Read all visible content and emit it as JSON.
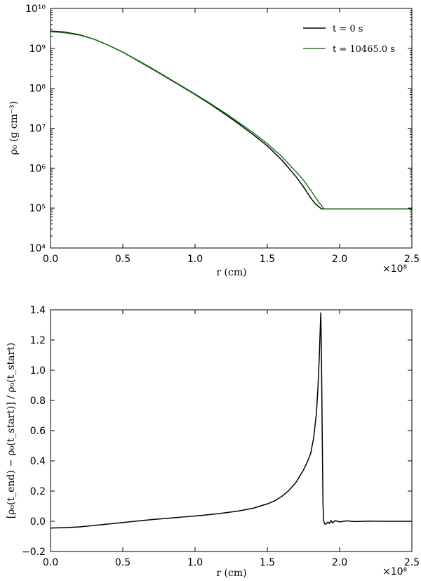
{
  "chart_data": [
    {
      "type": "line",
      "xlabel": "r  (cm)",
      "ylabel": "ρ₀  (g cm⁻³)",
      "x_multiplier": "×10⁸",
      "xlim": [
        0.0,
        2.5
      ],
      "ylim": [
        10000,
        10000000000
      ],
      "y_scale": "log",
      "grid": false,
      "legend_position": "top-right",
      "x_ticks": [
        "0.0",
        "0.5",
        "1.0",
        "1.5",
        "2.0",
        "2.5"
      ],
      "y_ticks": [
        "10⁴",
        "10⁵",
        "10⁶",
        "10⁷",
        "10⁸",
        "10⁹",
        "10¹⁰"
      ],
      "series": [
        {
          "name": "t = 0 s",
          "color": "#000000",
          "x": [
            0.0,
            0.05,
            0.1,
            0.2,
            0.3,
            0.4,
            0.5,
            0.6,
            0.7,
            0.8,
            0.9,
            1.0,
            1.1,
            1.2,
            1.3,
            1.4,
            1.5,
            1.6,
            1.7,
            1.75,
            1.8,
            1.83,
            1.86,
            1.875,
            1.9,
            2.0,
            2.5
          ],
          "y": [
            2700000000.0,
            2650000000.0,
            2550000000.0,
            2200000000.0,
            1700000000.0,
            1200000000.0,
            800000000.0,
            500000000.0,
            310000000.0,
            190000000.0,
            115000000.0,
            70000000.0,
            41000000.0,
            23500000.0,
            13000000.0,
            7000000.0,
            3600000.0,
            1600000.0,
            600000.0,
            340000.0,
            180000.0,
            130000.0,
            105000.0,
            95000.0,
            95000.0,
            95000.0,
            95000.0
          ]
        },
        {
          "name": "t = 10465.0 s",
          "color": "#1a7a1a",
          "x": [
            0.0,
            0.05,
            0.1,
            0.2,
            0.3,
            0.4,
            0.5,
            0.6,
            0.7,
            0.8,
            0.9,
            1.0,
            1.1,
            1.2,
            1.3,
            1.4,
            1.5,
            1.6,
            1.7,
            1.75,
            1.8,
            1.84,
            1.87,
            1.89,
            1.9,
            2.0,
            2.5
          ],
          "y": [
            2600000000.0,
            2550000000.0,
            2450000000.0,
            2150000000.0,
            1700000000.0,
            1200000000.0,
            800000000.0,
            510000000.0,
            320000000.0,
            195000000.0,
            118000000.0,
            72000000.0,
            43000000.0,
            25000000.0,
            14200000.0,
            7800000.0,
            4100000.0,
            1950000.0,
            800000.0,
            500000.0,
            280000.0,
            170000.0,
            120000.0,
            98000.0,
            95000.0,
            95000.0,
            95000.0
          ]
        }
      ]
    },
    {
      "type": "line",
      "xlabel": "r  (cm)",
      "ylabel": "[ρ₀(t_end) − ρ₀(t_start)] / ρ₀(t_start)",
      "x_multiplier": "×10⁸",
      "xlim": [
        0.0,
        2.5
      ],
      "ylim": [
        -0.2,
        1.4
      ],
      "grid": false,
      "x_ticks": [
        "0.0",
        "0.5",
        "1.0",
        "1.5",
        "2.0",
        "2.5"
      ],
      "y_ticks": [
        "−0.2",
        "0.0",
        "0.2",
        "0.4",
        "0.6",
        "0.8",
        "1.0",
        "1.2",
        "1.4"
      ],
      "series": [
        {
          "color": "#000000",
          "x": [
            0.0,
            0.1,
            0.2,
            0.3,
            0.4,
            0.5,
            0.6,
            0.7,
            0.8,
            0.9,
            1.0,
            1.1,
            1.2,
            1.3,
            1.4,
            1.5,
            1.55,
            1.6,
            1.65,
            1.7,
            1.75,
            1.78,
            1.8,
            1.82,
            1.84,
            1.85,
            1.86,
            1.865,
            1.87,
            1.875,
            1.88,
            1.885,
            1.89,
            1.9,
            1.91,
            1.92,
            1.93,
            1.94,
            1.95,
            1.97,
            2.0,
            2.05,
            2.1,
            2.2,
            2.3,
            2.4,
            2.5
          ],
          "y": [
            -0.045,
            -0.042,
            -0.037,
            -0.028,
            -0.018,
            -0.008,
            0.002,
            0.011,
            0.019,
            0.027,
            0.035,
            0.044,
            0.055,
            0.068,
            0.086,
            0.115,
            0.135,
            0.165,
            0.205,
            0.26,
            0.34,
            0.4,
            0.45,
            0.55,
            0.72,
            0.88,
            1.1,
            1.25,
            1.38,
            1.05,
            0.55,
            0.12,
            0.0,
            -0.02,
            -0.015,
            -0.005,
            -0.015,
            0.005,
            -0.01,
            0.004,
            -0.004,
            0.003,
            -0.002,
            0.001,
            0.0,
            0.0,
            0.0
          ]
        }
      ]
    }
  ]
}
